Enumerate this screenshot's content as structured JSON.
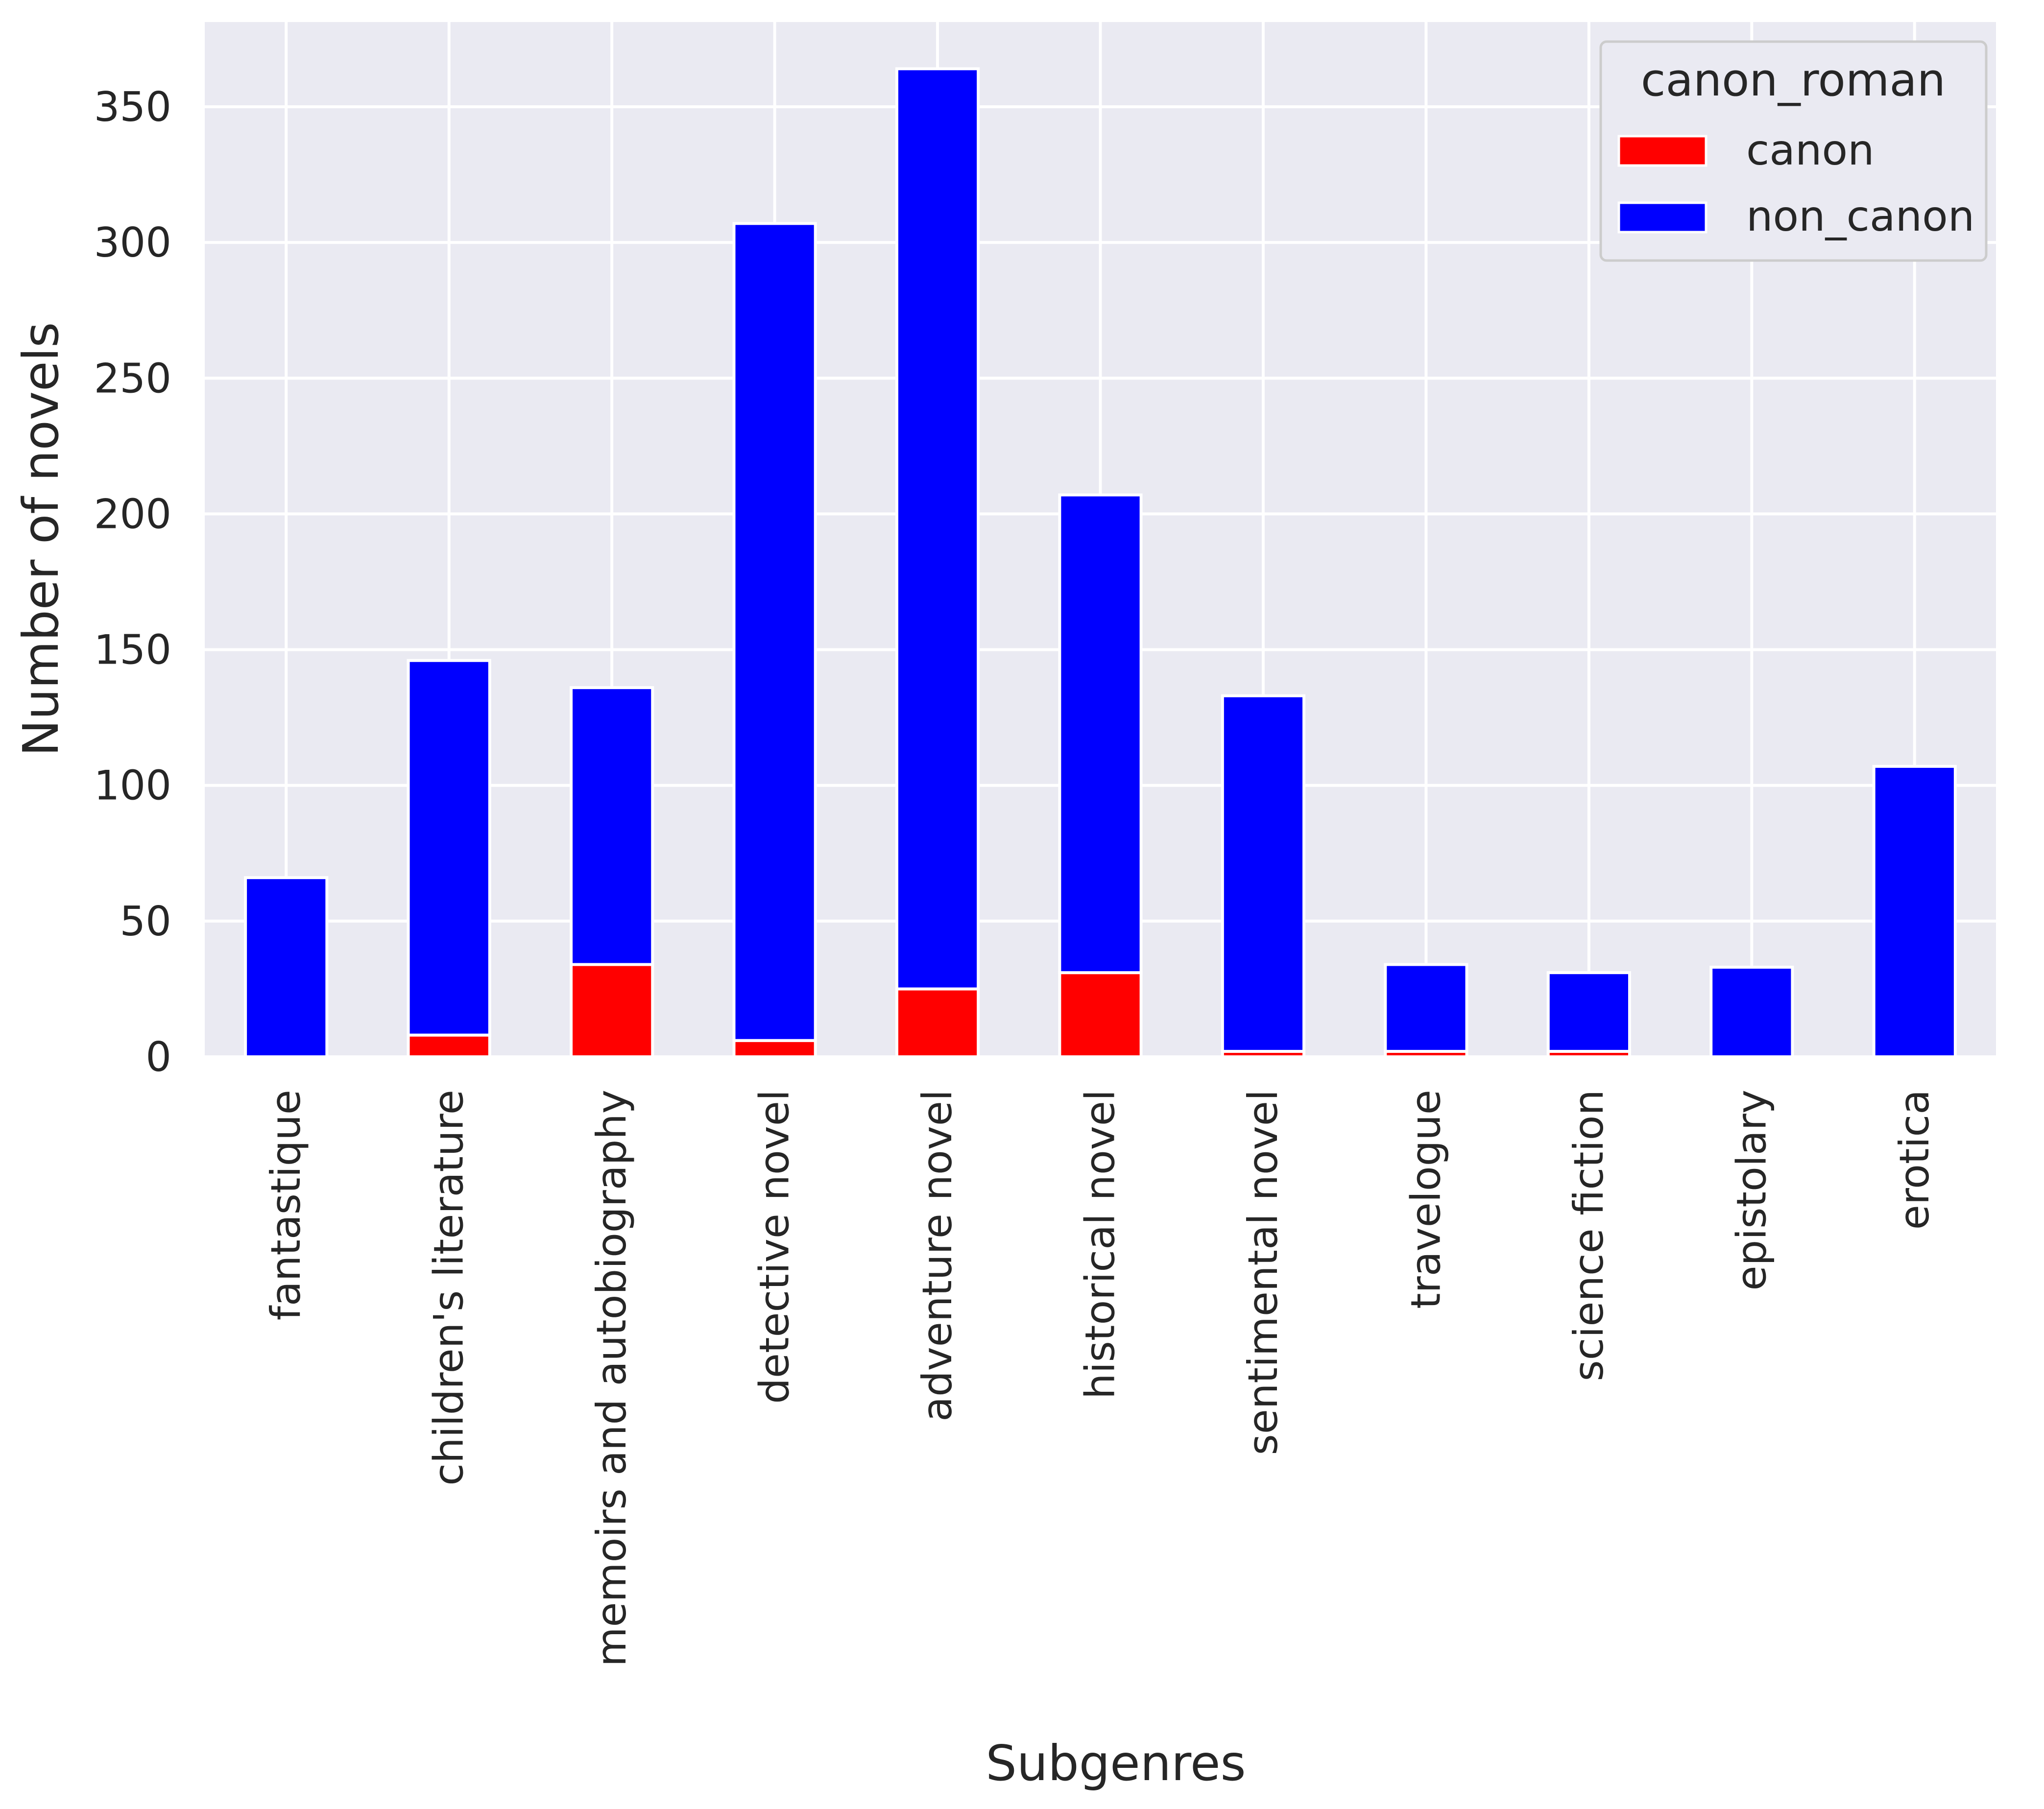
{
  "chart_data": {
    "type": "bar",
    "stacked": true,
    "title": "",
    "xlabel": "Subgenres",
    "ylabel": "Number of novels",
    "ylim": [
      0,
      380
    ],
    "yticks": [
      0,
      50,
      100,
      150,
      200,
      250,
      300,
      350
    ],
    "grid": true,
    "legend_title": "canon_roman",
    "legend_position": "top-right",
    "categories": [
      "fantastique",
      "children's literature",
      "memoirs and autobiography",
      "detective novel",
      "adventure novel",
      "historical novel",
      "sentimental novel",
      "travelogue",
      "science fiction",
      "epistolary",
      "erotica"
    ],
    "series": [
      {
        "name": "canon",
        "color": "#ff0000",
        "values": [
          0,
          8,
          34,
          6,
          25,
          31,
          2,
          2,
          2,
          0,
          0
        ]
      },
      {
        "name": "non_canon",
        "color": "#0000ff",
        "values": [
          66,
          138,
          102,
          301,
          339,
          176,
          131,
          32,
          29,
          33,
          107
        ]
      }
    ]
  }
}
